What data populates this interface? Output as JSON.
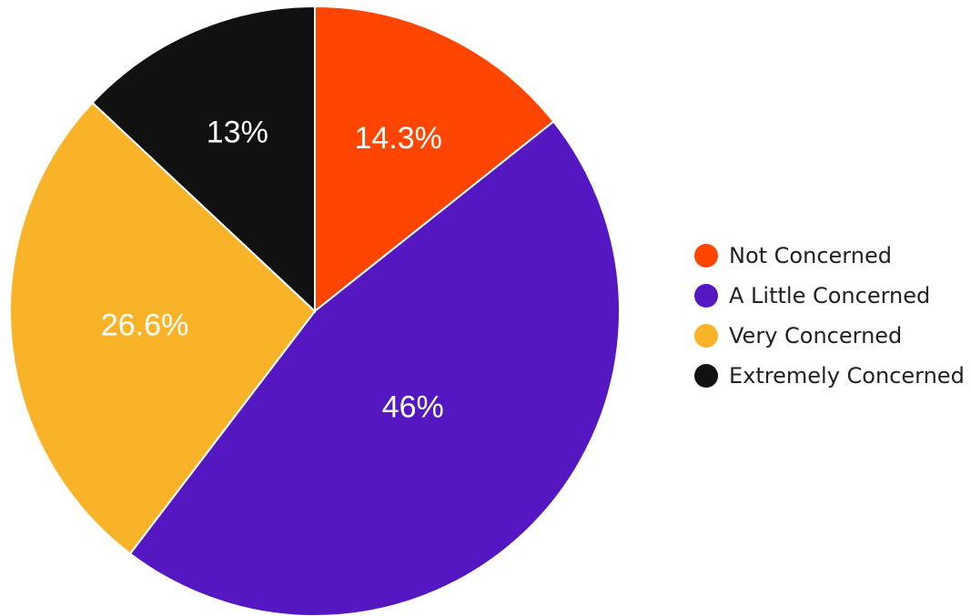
{
  "chart_data": {
    "type": "pie",
    "categories": [
      "Not Concerned",
      "A Little Concerned",
      "Very Concerned",
      "Extremely Concerned"
    ],
    "values": [
      14.3,
      46,
      26.6,
      13
    ],
    "data_labels": [
      "14.3%",
      "46%",
      "26.6%",
      "13%"
    ],
    "colors": [
      "#FF4500",
      "#5517C2",
      "#F9B328",
      "#111111"
    ],
    "legend_position": "right"
  }
}
